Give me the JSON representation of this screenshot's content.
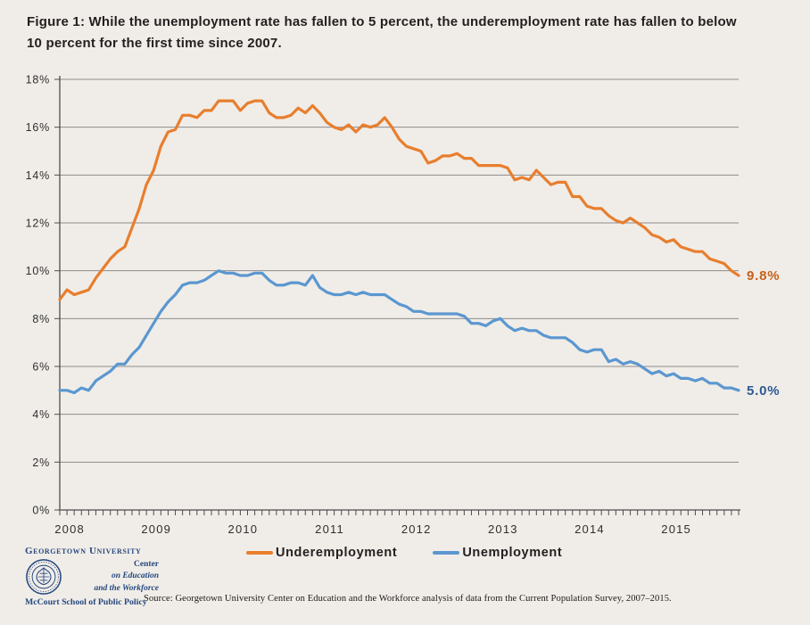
{
  "figure": {
    "title_line1": "Figure 1: While the unemployment rate has fallen to 5 percent, the underemployment rate has fallen to below",
    "title_line2": "10 percent for the first time since 2007."
  },
  "chart_data": {
    "type": "line",
    "grid": true,
    "y_axis": {
      "min": 0,
      "max": 18,
      "tick_step": 2,
      "tick_suffix": "%"
    },
    "x_axis": {
      "tick_unit": "month",
      "first_point": "2007-12",
      "last_point": "2015-10",
      "year_labels": [
        2008,
        2009,
        2010,
        2011,
        2012,
        2013,
        2014,
        2015
      ]
    },
    "series": [
      {
        "name": "Underemployment",
        "color": "#e87e2e",
        "end_label": "9.8%",
        "end_label_color": "#c6601a",
        "values": [
          8.8,
          9.2,
          9.0,
          9.1,
          9.2,
          9.7,
          10.1,
          10.5,
          10.8,
          11.0,
          11.8,
          12.6,
          13.6,
          14.2,
          15.2,
          15.8,
          15.9,
          16.5,
          16.5,
          16.4,
          16.7,
          16.7,
          17.1,
          17.1,
          17.1,
          16.7,
          17.0,
          17.1,
          17.1,
          16.6,
          16.4,
          16.4,
          16.5,
          16.8,
          16.6,
          16.9,
          16.6,
          16.2,
          16.0,
          15.9,
          16.1,
          15.8,
          16.1,
          16.0,
          16.1,
          16.4,
          16.0,
          15.5,
          15.2,
          15.1,
          15.0,
          14.5,
          14.6,
          14.8,
          14.8,
          14.9,
          14.7,
          14.7,
          14.4,
          14.4,
          14.4,
          14.4,
          14.3,
          13.8,
          13.9,
          13.8,
          14.2,
          13.9,
          13.6,
          13.7,
          13.7,
          13.1,
          13.1,
          12.7,
          12.6,
          12.6,
          12.3,
          12.1,
          12.0,
          12.2,
          12.0,
          11.8,
          11.5,
          11.4,
          11.2,
          11.3,
          11.0,
          10.9,
          10.8,
          10.8,
          10.5,
          10.4,
          10.3,
          10.0,
          9.8
        ]
      },
      {
        "name": "Unemployment",
        "color": "#5b97d0",
        "end_label": "5.0%",
        "end_label_color": "#2e5893",
        "values": [
          5.0,
          5.0,
          4.9,
          5.1,
          5.0,
          5.4,
          5.6,
          5.8,
          6.1,
          6.1,
          6.5,
          6.8,
          7.3,
          7.8,
          8.3,
          8.7,
          9.0,
          9.4,
          9.5,
          9.5,
          9.6,
          9.8,
          10.0,
          9.9,
          9.9,
          9.8,
          9.8,
          9.9,
          9.9,
          9.6,
          9.4,
          9.4,
          9.5,
          9.5,
          9.4,
          9.8,
          9.3,
          9.1,
          9.0,
          9.0,
          9.1,
          9.0,
          9.1,
          9.0,
          9.0,
          9.0,
          8.8,
          8.6,
          8.5,
          8.3,
          8.3,
          8.2,
          8.2,
          8.2,
          8.2,
          8.2,
          8.1,
          7.8,
          7.8,
          7.7,
          7.9,
          8.0,
          7.7,
          7.5,
          7.6,
          7.5,
          7.5,
          7.3,
          7.2,
          7.2,
          7.2,
          7.0,
          6.7,
          6.6,
          6.7,
          6.7,
          6.2,
          6.3,
          6.1,
          6.2,
          6.1,
          5.9,
          5.7,
          5.8,
          5.6,
          5.7,
          5.5,
          5.5,
          5.4,
          5.5,
          5.3,
          5.3,
          5.1,
          5.1,
          5.0
        ]
      }
    ]
  },
  "legend": {
    "items": [
      {
        "label": "Underemployment"
      },
      {
        "label": "Unemployment"
      }
    ]
  },
  "footer": {
    "logo": {
      "university": "Georgetown University",
      "center_line1": "Center",
      "center_line2": "on Education",
      "center_line3": "and the Workforce",
      "school": "McCourt School of Public Policy"
    },
    "source": "Source: Georgetown University Center on Education and the Workforce analysis of data from the Current Population Survey, 2007–2015."
  }
}
